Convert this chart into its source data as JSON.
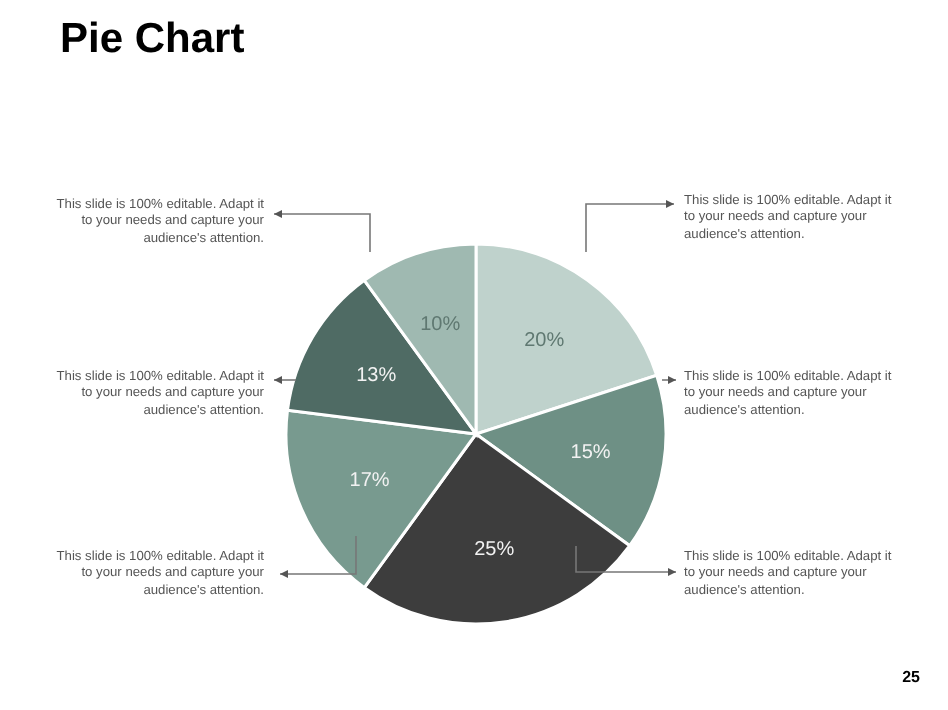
{
  "chart_data": {
    "type": "pie",
    "title": "Pie Chart",
    "categories": [
      null,
      null,
      null,
      null,
      null,
      null
    ],
    "values": [
      20,
      15,
      25,
      17,
      13,
      10
    ],
    "colors": [
      "#bfd2cc",
      "#6e9085",
      "#3d3d3d",
      "#789a8f",
      "#4f6b64",
      "#9fb9b1"
    ],
    "value_labels": [
      "20%",
      "15%",
      "25%",
      "17%",
      "13%",
      "10%"
    ],
    "annotations": [
      "This slide is 100% editable. Adapt it to your needs and capture your audience's attention.",
      "This slide is 100% editable. Adapt it to your needs and capture your audience's attention.",
      "This slide is 100% editable. Adapt it to your needs and capture your audience's attention.",
      "This slide is 100% editable. Adapt it to your needs and capture your audience's attention.",
      "This slide is 100% editable. Adapt it to your needs and capture your audience's attention.",
      "This slide is 100% editable. Adapt it to your needs and capture your audience's attention.",
      "25"
    ]
  }
}
